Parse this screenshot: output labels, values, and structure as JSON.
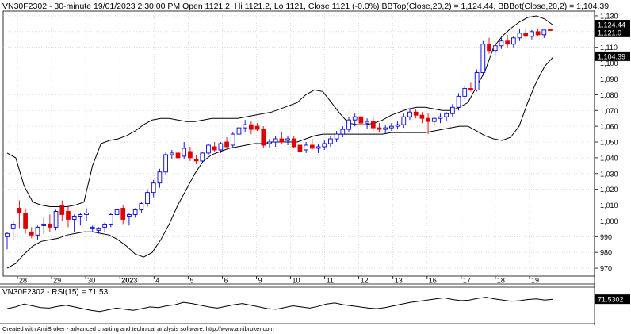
{
  "header": {
    "symbol": "VN30F2302",
    "text": "VN30F2302 - 30-minute 19/01/2023 2:30:00 PM Open 1121.2, Hi 1121.2, Lo 1121, Close 1121 (-0.0%) BBTop(Close,20,2) = 1,124.44, BBBot(Close,20,2) = 1,104.39"
  },
  "rsi_header": "VN30F2302 - RSI(15) = 71.53",
  "footer": "Created with AmiBroker - advanced charting and technical analysis software. http://www.amibroker.com",
  "colors": {
    "up": "#0000e0",
    "down": "#e00000",
    "band": "#000000",
    "grid": "#c8c8c8",
    "tag_bg": "#000000",
    "tag_fg": "#ffffff"
  },
  "chart_data": [
    {
      "type": "candlestick",
      "title": "VN30F2302 - 30-minute",
      "y_ticks": [
        "970",
        "980",
        "990",
        "1,000",
        "1,010",
        "1,020",
        "1,030",
        "1,040",
        "1,050",
        "1,060",
        "1,070",
        "1,080",
        "1,090",
        "1,100",
        "1,110",
        "1,120",
        "1,130"
      ],
      "ylim": [
        965,
        1133
      ],
      "x_labels": [
        "28",
        "29",
        "30",
        "2023",
        "4",
        "5",
        "6",
        "9",
        "10",
        "11",
        "12",
        "13",
        "16",
        "17",
        "18",
        "19"
      ],
      "value_tags": [
        "1,124.44",
        "1,121.0",
        "1,104.39"
      ],
      "bb_top": [
        1043,
        1040,
        1022,
        1012,
        1010,
        1009,
        1009,
        1009,
        1010,
        1012,
        1035,
        1049,
        1051,
        1052,
        1054,
        1057,
        1061,
        1064,
        1065,
        1065,
        1064,
        1063,
        1063,
        1064,
        1065,
        1065,
        1065,
        1065,
        1066,
        1067,
        1068,
        1069,
        1071,
        1073,
        1075,
        1080,
        1083,
        1082,
        1075,
        1068,
        1062,
        1061,
        1061,
        1062,
        1064,
        1067,
        1069,
        1071,
        1072,
        1072,
        1071,
        1070,
        1070,
        1072,
        1075,
        1085,
        1095,
        1110,
        1117,
        1122,
        1126,
        1129,
        1130,
        1128,
        1124
      ],
      "bb_bot": [
        970,
        973,
        979,
        984,
        987,
        988,
        989,
        991,
        992,
        993,
        993,
        992,
        991,
        988,
        984,
        979,
        977,
        980,
        988,
        998,
        1010,
        1020,
        1030,
        1038,
        1042,
        1044,
        1046,
        1047,
        1048,
        1049,
        1049,
        1050,
        1050,
        1050,
        1050,
        1052,
        1054,
        1055,
        1055,
        1055,
        1055,
        1055,
        1055,
        1055,
        1055,
        1056,
        1056,
        1056,
        1056,
        1056,
        1057,
        1058,
        1059,
        1060,
        1060,
        1057,
        1054,
        1052,
        1051,
        1053,
        1060,
        1075,
        1088,
        1098,
        1104
      ],
      "candles": [
        {
          "o": 990,
          "h": 993,
          "l": 982,
          "c": 992
        },
        {
          "o": 995,
          "h": 1000,
          "l": 988,
          "c": 998
        },
        {
          "o": 1008,
          "h": 1013,
          "l": 995,
          "c": 1005
        },
        {
          "o": 1005,
          "h": 1008,
          "l": 992,
          "c": 995
        },
        {
          "o": 993,
          "h": 996,
          "l": 989,
          "c": 991
        },
        {
          "o": 991,
          "h": 997,
          "l": 988,
          "c": 996
        },
        {
          "o": 997,
          "h": 1002,
          "l": 992,
          "c": 998
        },
        {
          "o": 998,
          "h": 1004,
          "l": 993,
          "c": 996
        },
        {
          "o": 996,
          "h": 1007,
          "l": 994,
          "c": 1006
        },
        {
          "o": 1010,
          "h": 1013,
          "l": 1000,
          "c": 1004
        },
        {
          "o": 1006,
          "h": 1009,
          "l": 996,
          "c": 1001
        },
        {
          "o": 1001,
          "h": 1004,
          "l": 993,
          "c": 1003
        },
        {
          "o": 1003,
          "h": 1005,
          "l": 997,
          "c": 1004
        },
        {
          "o": 1004,
          "h": 1008,
          "l": 1000,
          "c": 1005
        },
        {
          "o": 995,
          "h": 997,
          "l": 993,
          "c": 996
        },
        {
          "o": 994,
          "h": 996,
          "l": 992,
          "c": 995
        },
        {
          "o": 996,
          "h": 999,
          "l": 993,
          "c": 998
        },
        {
          "o": 998,
          "h": 1005,
          "l": 996,
          "c": 1004
        },
        {
          "o": 1004,
          "h": 1010,
          "l": 1001,
          "c": 1007
        },
        {
          "o": 1008,
          "h": 1010,
          "l": 998,
          "c": 1001
        },
        {
          "o": 1003,
          "h": 1005,
          "l": 997,
          "c": 1004
        },
        {
          "o": 1004,
          "h": 1008,
          "l": 1002,
          "c": 1007
        },
        {
          "o": 1007,
          "h": 1012,
          "l": 1005,
          "c": 1011
        },
        {
          "o": 1011,
          "h": 1020,
          "l": 1009,
          "c": 1018
        },
        {
          "o": 1018,
          "h": 1026,
          "l": 1015,
          "c": 1024
        },
        {
          "o": 1024,
          "h": 1033,
          "l": 1021,
          "c": 1031
        },
        {
          "o": 1031,
          "h": 1044,
          "l": 1029,
          "c": 1042
        },
        {
          "o": 1042,
          "h": 1045,
          "l": 1039,
          "c": 1043
        },
        {
          "o": 1043,
          "h": 1046,
          "l": 1038,
          "c": 1040
        },
        {
          "o": 1041,
          "h": 1050,
          "l": 1039,
          "c": 1046
        },
        {
          "o": 1044,
          "h": 1047,
          "l": 1038,
          "c": 1040
        },
        {
          "o": 1039,
          "h": 1042,
          "l": 1036,
          "c": 1038
        },
        {
          "o": 1038,
          "h": 1044,
          "l": 1037,
          "c": 1043
        },
        {
          "o": 1043,
          "h": 1049,
          "l": 1042,
          "c": 1048
        },
        {
          "o": 1047,
          "h": 1050,
          "l": 1044,
          "c": 1045
        },
        {
          "o": 1045,
          "h": 1050,
          "l": 1043,
          "c": 1049
        },
        {
          "o": 1050,
          "h": 1053,
          "l": 1046,
          "c": 1047
        },
        {
          "o": 1048,
          "h": 1056,
          "l": 1046,
          "c": 1055
        },
        {
          "o": 1055,
          "h": 1061,
          "l": 1053,
          "c": 1059
        },
        {
          "o": 1059,
          "h": 1064,
          "l": 1056,
          "c": 1061
        },
        {
          "o": 1061,
          "h": 1063,
          "l": 1055,
          "c": 1058
        },
        {
          "o": 1060,
          "h": 1062,
          "l": 1057,
          "c": 1058
        },
        {
          "o": 1058,
          "h": 1060,
          "l": 1046,
          "c": 1048
        },
        {
          "o": 1049,
          "h": 1052,
          "l": 1046,
          "c": 1050
        },
        {
          "o": 1050,
          "h": 1054,
          "l": 1047,
          "c": 1052
        },
        {
          "o": 1052,
          "h": 1056,
          "l": 1049,
          "c": 1050
        },
        {
          "o": 1051,
          "h": 1054,
          "l": 1048,
          "c": 1052
        },
        {
          "o": 1052,
          "h": 1054,
          "l": 1046,
          "c": 1047
        },
        {
          "o": 1048,
          "h": 1050,
          "l": 1043,
          "c": 1044
        },
        {
          "o": 1045,
          "h": 1050,
          "l": 1043,
          "c": 1048
        },
        {
          "o": 1048,
          "h": 1052,
          "l": 1045,
          "c": 1046
        },
        {
          "o": 1046,
          "h": 1049,
          "l": 1043,
          "c": 1047
        },
        {
          "o": 1047,
          "h": 1051,
          "l": 1045,
          "c": 1049
        },
        {
          "o": 1049,
          "h": 1054,
          "l": 1047,
          "c": 1052
        },
        {
          "o": 1052,
          "h": 1057,
          "l": 1050,
          "c": 1055
        },
        {
          "o": 1055,
          "h": 1060,
          "l": 1053,
          "c": 1058
        },
        {
          "o": 1058,
          "h": 1066,
          "l": 1056,
          "c": 1064
        },
        {
          "o": 1064,
          "h": 1068,
          "l": 1060,
          "c": 1066
        },
        {
          "o": 1066,
          "h": 1068,
          "l": 1060,
          "c": 1062
        },
        {
          "o": 1062,
          "h": 1065,
          "l": 1058,
          "c": 1063
        },
        {
          "o": 1063,
          "h": 1066,
          "l": 1057,
          "c": 1059
        },
        {
          "o": 1059,
          "h": 1062,
          "l": 1056,
          "c": 1058
        },
        {
          "o": 1058,
          "h": 1061,
          "l": 1055,
          "c": 1059
        },
        {
          "o": 1059,
          "h": 1062,
          "l": 1057,
          "c": 1060
        },
        {
          "o": 1060,
          "h": 1063,
          "l": 1058,
          "c": 1061
        },
        {
          "o": 1061,
          "h": 1068,
          "l": 1059,
          "c": 1066
        },
        {
          "o": 1066,
          "h": 1071,
          "l": 1064,
          "c": 1069
        },
        {
          "o": 1069,
          "h": 1071,
          "l": 1065,
          "c": 1067
        },
        {
          "o": 1067,
          "h": 1069,
          "l": 1062,
          "c": 1065
        },
        {
          "o": 1065,
          "h": 1068,
          "l": 1055,
          "c": 1063
        },
        {
          "o": 1063,
          "h": 1066,
          "l": 1061,
          "c": 1065
        },
        {
          "o": 1065,
          "h": 1068,
          "l": 1062,
          "c": 1066
        },
        {
          "o": 1066,
          "h": 1069,
          "l": 1063,
          "c": 1068
        },
        {
          "o": 1068,
          "h": 1074,
          "l": 1066,
          "c": 1072
        },
        {
          "o": 1072,
          "h": 1081,
          "l": 1070,
          "c": 1079
        },
        {
          "o": 1079,
          "h": 1086,
          "l": 1077,
          "c": 1084
        },
        {
          "o": 1084,
          "h": 1088,
          "l": 1082,
          "c": 1083
        },
        {
          "o": 1083,
          "h": 1096,
          "l": 1082,
          "c": 1094
        },
        {
          "o": 1094,
          "h": 1114,
          "l": 1092,
          "c": 1112
        },
        {
          "o": 1112,
          "h": 1116,
          "l": 1106,
          "c": 1108
        },
        {
          "o": 1108,
          "h": 1113,
          "l": 1105,
          "c": 1111
        },
        {
          "o": 1111,
          "h": 1116,
          "l": 1109,
          "c": 1114
        },
        {
          "o": 1114,
          "h": 1118,
          "l": 1110,
          "c": 1112
        },
        {
          "o": 1112,
          "h": 1117,
          "l": 1110,
          "c": 1116
        },
        {
          "o": 1116,
          "h": 1122,
          "l": 1114,
          "c": 1119
        },
        {
          "o": 1119,
          "h": 1122,
          "l": 1116,
          "c": 1117
        },
        {
          "o": 1117,
          "h": 1121,
          "l": 1115,
          "c": 1120
        },
        {
          "o": 1120,
          "h": 1122,
          "l": 1117,
          "c": 1118
        },
        {
          "o": 1118,
          "h": 1121,
          "l": 1116,
          "c": 1121
        },
        {
          "o": 1121.2,
          "h": 1121.2,
          "l": 1121,
          "c": 1121
        }
      ]
    },
    {
      "type": "line",
      "title": "VN30F2302 - RSI(15) = 71.53",
      "value_tag": "71.5302",
      "values": [
        55,
        58,
        63,
        60,
        57,
        56,
        59,
        61,
        58,
        55,
        52,
        50,
        53,
        56,
        54,
        52,
        55,
        58,
        57,
        60,
        62,
        66,
        64,
        61,
        58,
        56,
        59,
        62,
        64,
        61,
        58,
        55,
        54,
        57,
        60,
        58,
        56,
        59,
        63,
        65,
        62,
        60,
        58,
        56,
        55,
        57,
        60,
        63,
        66,
        68,
        70,
        72,
        74,
        71,
        69,
        70,
        73,
        75,
        72,
        70,
        68,
        69,
        71,
        72,
        70,
        71.53
      ]
    }
  ]
}
